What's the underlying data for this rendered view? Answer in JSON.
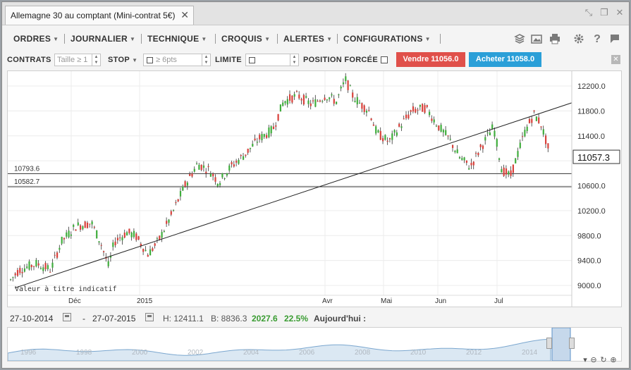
{
  "window": {
    "tab_title": "Allemagne 30 au comptant (Mini-contrat 5€)",
    "tab_close": "✕",
    "controls": [
      "⤡",
      "❐",
      "✕"
    ]
  },
  "menu": [
    {
      "label": "ORDRES"
    },
    {
      "label": "JOURNALIER"
    },
    {
      "label": "TECHNIQUE"
    },
    {
      "label": "CROQUIS"
    },
    {
      "label": "ALERTES"
    },
    {
      "label": "CONFIGURATIONS"
    }
  ],
  "toolbar_icons": [
    "layers-icon",
    "image-icon",
    "print-icon",
    "gear-icon",
    "help-icon",
    "flag-icon"
  ],
  "order_bar": {
    "contracts_label": "CONTRATS",
    "contracts_placeholder": "Taille ≥ 1",
    "stop_label": "STOP",
    "stop_placeholder": "≥ 6pts",
    "limit_label": "LIMITE",
    "forced_label": "POSITION FORCÉE",
    "sell_label": "Vendre 11056.0",
    "buy_label": "Acheter 11058.0",
    "close_label": "✕"
  },
  "chart_data": {
    "type": "candlestick",
    "y_ticks": [
      "12200.0",
      "11800.0",
      "11400.0",
      "10600.0",
      "10200.0",
      "9800.0",
      "9400.0",
      "9000.0"
    ],
    "x_ticks": [
      "Déc",
      "2015",
      "Avr",
      "Mai",
      "Jun",
      "Jul"
    ],
    "current_price": "11057.3",
    "hlines": [
      {
        "label": "10793.6",
        "value": 10793.6
      },
      {
        "label": "10582.7",
        "value": 10582.7
      }
    ],
    "watermark": "Valeur à titre indicatif",
    "trendline": [
      [
        9020,
        11900
      ]
    ],
    "colors": {
      "up": "#3fae3c",
      "down": "#d9413b",
      "line": "#222222"
    }
  },
  "info_bar": {
    "from_date": "27-10-2014",
    "dash": "-",
    "to_date": "27-07-2015",
    "high": "H: 12411.1",
    "low": "B: 8836.3",
    "change": "2027.6",
    "change_pct": "22.5%",
    "today": "Aujourd'hui :"
  },
  "navigator": {
    "years": [
      "1996",
      "1998",
      "2000",
      "2002",
      "2004",
      "2006",
      "2008",
      "2010",
      "2012",
      "2014"
    ]
  }
}
